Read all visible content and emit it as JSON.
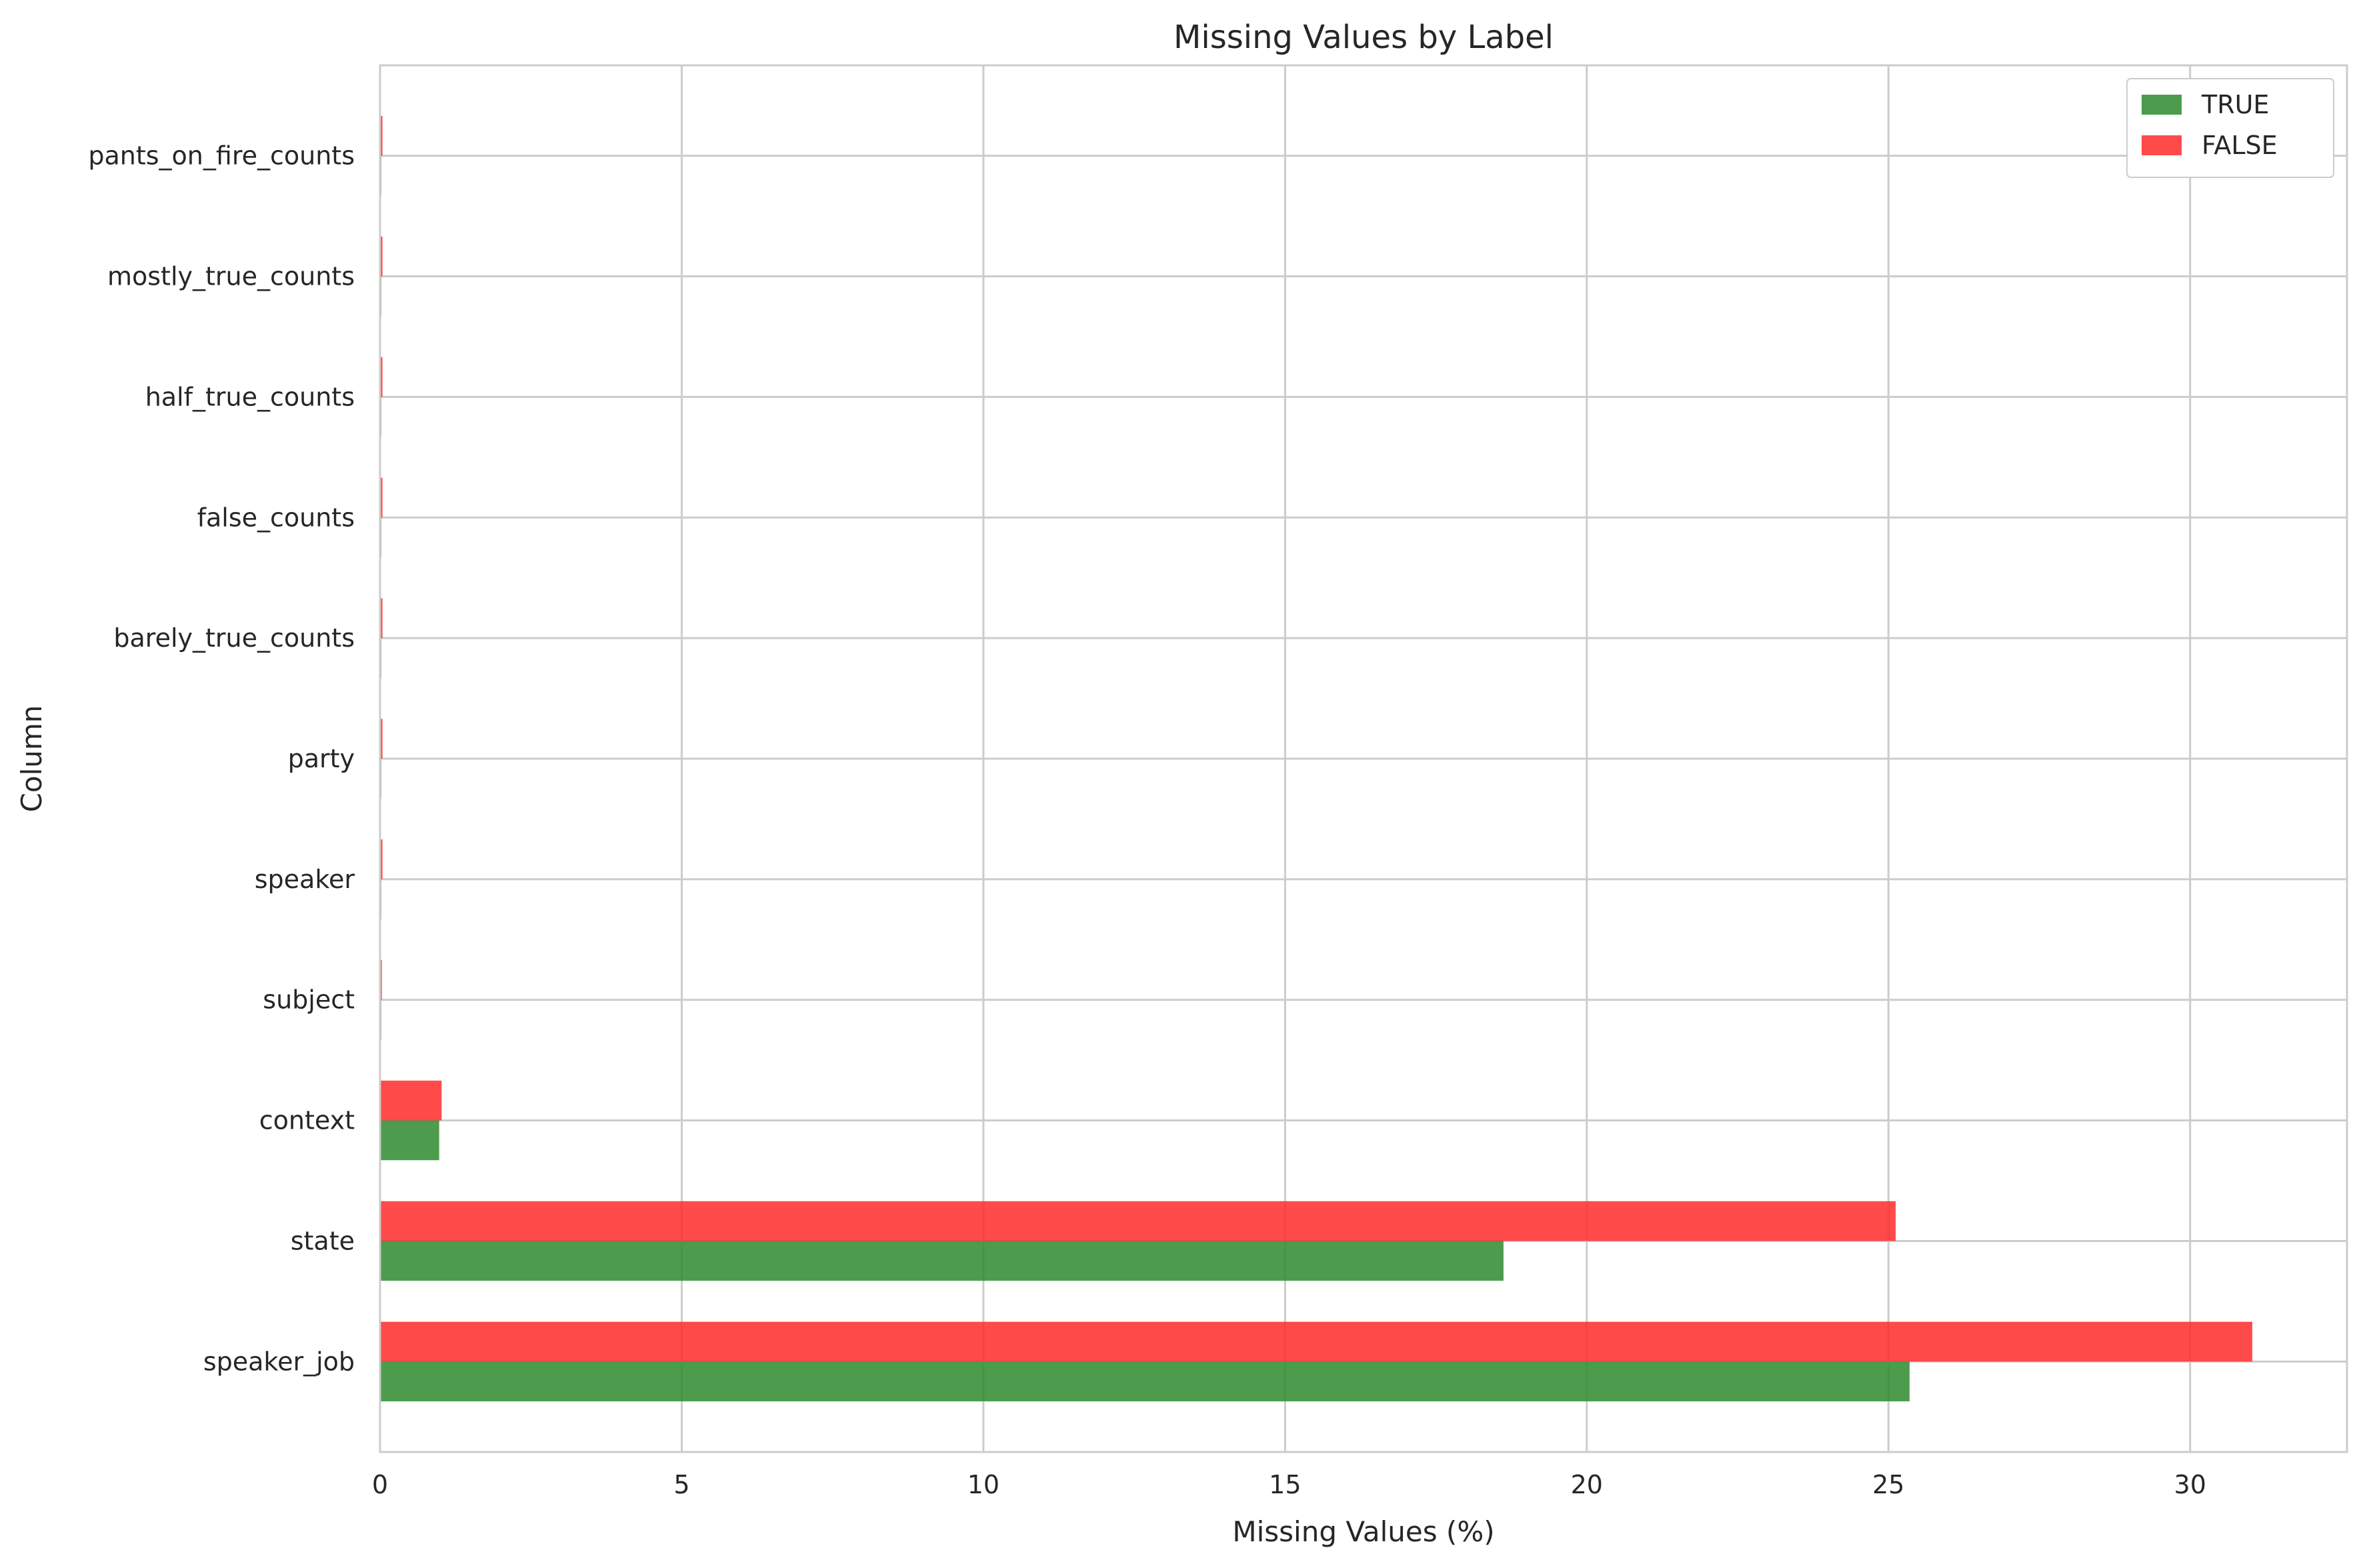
{
  "chart_data": {
    "type": "bar",
    "orientation": "horizontal",
    "title": "Missing Values by Label",
    "xlabel": "Missing Values (%)",
    "ylabel": "Column",
    "xlim": [
      0,
      32.6
    ],
    "xticks": [
      "0",
      "5",
      "10",
      "15",
      "20",
      "25",
      "30"
    ],
    "grid": true,
    "legend_position": "top-right",
    "categories": [
      "speaker_job",
      "state",
      "context",
      "subject",
      "speaker",
      "party",
      "barely_true_counts",
      "false_counts",
      "half_true_counts",
      "mostly_true_counts",
      "pants_on_fire_counts"
    ],
    "series": [
      {
        "name": "TRUE",
        "color": "#2e8b2e",
        "values": [
          25.35,
          18.62,
          0.98,
          0.02,
          0.02,
          0.02,
          0.02,
          0.02,
          0.02,
          0.02,
          0.02
        ]
      },
      {
        "name": "FALSE",
        "color": "#ff2a2a",
        "values": [
          31.03,
          25.12,
          1.02,
          0.03,
          0.04,
          0.04,
          0.04,
          0.04,
          0.04,
          0.04,
          0.04
        ]
      }
    ]
  }
}
